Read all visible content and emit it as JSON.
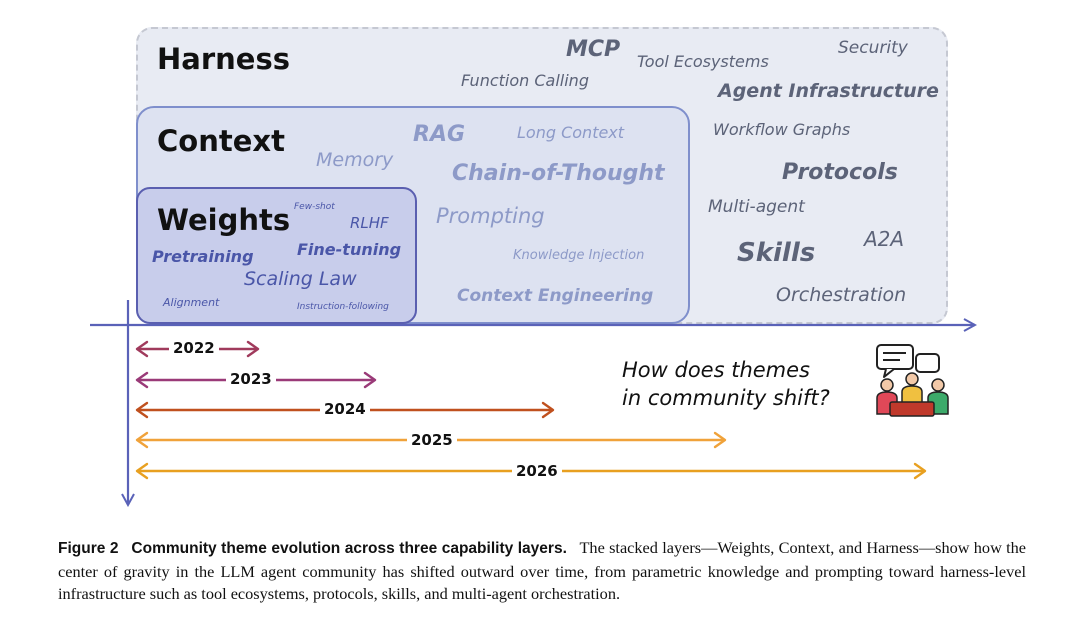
{
  "layers": {
    "harness": {
      "title": "Harness",
      "terms": {
        "mcp": "MCP",
        "tool_ecosystems": "Tool Ecosystems",
        "security": "Security",
        "function_calling": "Function Calling",
        "agent_infrastructure": "Agent Infrastructure",
        "workflow_graphs": "Workflow Graphs",
        "protocols": "Protocols",
        "multi_agent": "Multi-agent",
        "skills": "Skills",
        "a2a": "A2A",
        "orchestration": "Orchestration"
      }
    },
    "context": {
      "title": "Context",
      "terms": {
        "rag": "RAG",
        "long_context": "Long Context",
        "memory": "Memory",
        "chain_of_thought": "Chain-of-Thought",
        "prompting": "Prompting",
        "knowledge_injection": "Knowledge Injection",
        "context_engineering": "Context Engineering"
      }
    },
    "weights": {
      "title": "Weights",
      "terms": {
        "few_shot": "Few-shot",
        "rlhf": "RLHF",
        "fine_tuning": "Fine-tuning",
        "pretraining": "Pretraining",
        "scaling_law": "Scaling Law",
        "alignment": "Alignment",
        "instruction_following": "Instruction-following"
      }
    }
  },
  "timeline": [
    {
      "year": "2022",
      "color": "#a03a5c"
    },
    {
      "year": "2023",
      "color": "#9a3a78"
    },
    {
      "year": "2024",
      "color": "#c0501e"
    },
    {
      "year": "2025",
      "color": "#f0a23a"
    },
    {
      "year": "2026",
      "color": "#e8a020"
    }
  ],
  "colors": {
    "axis": "#5a62b8",
    "harness_bg": "#e8ebf3",
    "context_bg": "#dde2f1",
    "weights_bg": "#c8cdeb"
  },
  "question": {
    "line1": "How does themes",
    "line2": "in community shift?"
  },
  "icon": "community-discussion-icon",
  "caption": {
    "label": "Figure 2",
    "title": "Community theme evolution across three capability layers.",
    "body": "The stacked layers—Weights, Context, and Harness—show how the center of gravity in the LLM agent community has shifted outward over time, from parametric knowledge and prompting toward harness-level infrastructure such as tool ecosystems, protocols, skills, and multi-agent orchestration."
  }
}
